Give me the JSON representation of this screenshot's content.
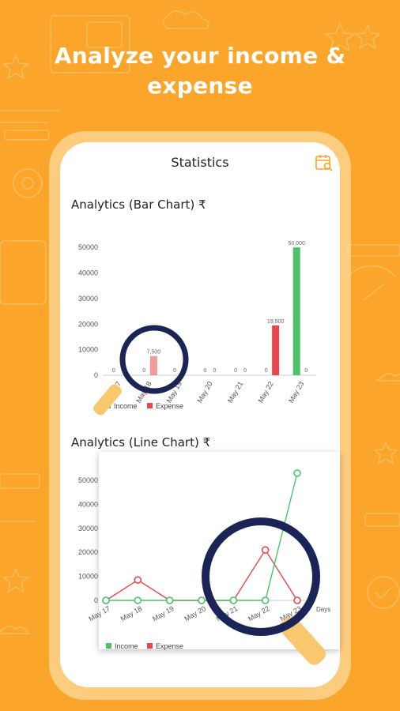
{
  "headline": {
    "line1": "Analyze your income &",
    "line2": "expense"
  },
  "screen": {
    "title": "Statistics",
    "calendar_icon": "calendar-search-icon"
  },
  "colors": {
    "background": "#FBA62A",
    "income": "#4CC36A",
    "expense": "#E8464A"
  },
  "chart_data": [
    {
      "type": "bar",
      "title": "Analytics (Bar Chart) ₹",
      "categories": [
        "May 17",
        "May 18",
        "May 19",
        "May 20",
        "May 21",
        "May 22",
        "May 23"
      ],
      "y_ticks": [
        "0",
        "10000",
        "20000",
        "30000",
        "40000",
        "50000"
      ],
      "ylim": [
        0,
        55000
      ],
      "series": [
        {
          "name": "Income",
          "values": [
            0,
            0,
            0,
            0,
            0,
            0,
            50000
          ],
          "labels": [
            "0",
            "0",
            "0",
            "0",
            "0",
            "0",
            "50,000"
          ]
        },
        {
          "name": "Expense",
          "values": [
            0,
            7500,
            0,
            0,
            0,
            19500,
            0
          ],
          "labels": [
            "0",
            "7,500",
            "0",
            "0",
            "0",
            "19,500",
            "0"
          ]
        }
      ],
      "legend": "bottom-left"
    },
    {
      "type": "line",
      "title": "Analytics (Line Chart) ₹",
      "categories": [
        "May 17",
        "May 18",
        "May 19",
        "May 20",
        "May 21",
        "May 22",
        "May 23"
      ],
      "y_ticks": [
        "0",
        "10000",
        "20000",
        "30000",
        "40000",
        "50000"
      ],
      "ylim": [
        0,
        55000
      ],
      "x_axis_label": "Days",
      "series": [
        {
          "name": "Income",
          "values": [
            0,
            0,
            0,
            0,
            0,
            0,
            53000
          ]
        },
        {
          "name": "Expense",
          "values": [
            0,
            8500,
            0,
            0,
            0,
            21000,
            0
          ]
        }
      ],
      "legend": "bottom-left"
    }
  ]
}
